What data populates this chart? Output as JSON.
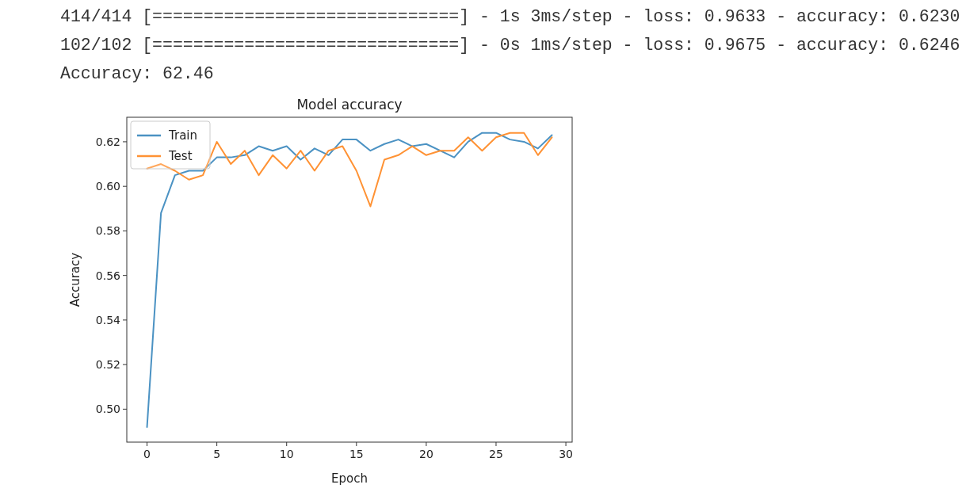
{
  "chart_data": {
    "type": "line",
    "title": "Model accuracy",
    "xlabel": "Epoch",
    "ylabel": "Accuracy",
    "annotations": [
      "414/414 [==============================] - 1s 3ms/step - loss: 0.9633 - accuracy: 0.6230",
      "102/102 [==============================] - 0s 1ms/step - loss: 0.9675 - accuracy: 0.6246",
      "Accuracy: 62.46"
    ],
    "x": [
      0,
      1,
      2,
      3,
      4,
      5,
      6,
      7,
      8,
      9,
      10,
      11,
      12,
      13,
      14,
      15,
      16,
      17,
      18,
      19,
      20,
      21,
      22,
      23,
      24,
      25,
      26,
      27,
      28,
      29
    ],
    "series": [
      {
        "name": "Train",
        "color": "#4b92c3",
        "values": [
          0.492,
          0.588,
          0.605,
          0.607,
          0.607,
          0.613,
          0.613,
          0.614,
          0.618,
          0.616,
          0.618,
          0.612,
          0.617,
          0.614,
          0.621,
          0.621,
          0.616,
          0.619,
          0.621,
          0.618,
          0.619,
          0.616,
          0.613,
          0.62,
          0.624,
          0.624,
          0.621,
          0.62,
          0.617,
          0.623
        ]
      },
      {
        "name": "Test",
        "color": "#ff9234",
        "values": [
          0.608,
          0.61,
          0.607,
          0.603,
          0.605,
          0.62,
          0.61,
          0.616,
          0.605,
          0.614,
          0.608,
          0.616,
          0.607,
          0.616,
          0.618,
          0.607,
          0.591,
          0.612,
          0.614,
          0.618,
          0.614,
          0.616,
          0.616,
          0.622,
          0.616,
          0.622,
          0.624,
          0.624,
          0.614,
          0.622
        ]
      }
    ],
    "xlim": [
      -1.45,
      30.45
    ],
    "ylim": [
      0.4852,
      0.631
    ],
    "xticks": [
      0,
      5,
      10,
      15,
      20,
      25,
      30
    ],
    "yticks": [
      {
        "value": 0.5,
        "label": "0.50"
      },
      {
        "value": 0.52,
        "label": "0.52"
      },
      {
        "value": 0.54,
        "label": "0.54"
      },
      {
        "value": 0.56,
        "label": "0.56"
      },
      {
        "value": 0.58,
        "label": "0.58"
      },
      {
        "value": 0.6,
        "label": "0.60"
      },
      {
        "value": 0.62,
        "label": "0.62"
      }
    ],
    "legend": "top left",
    "grid": false,
    "marker": "none",
    "line_style": "solid"
  }
}
